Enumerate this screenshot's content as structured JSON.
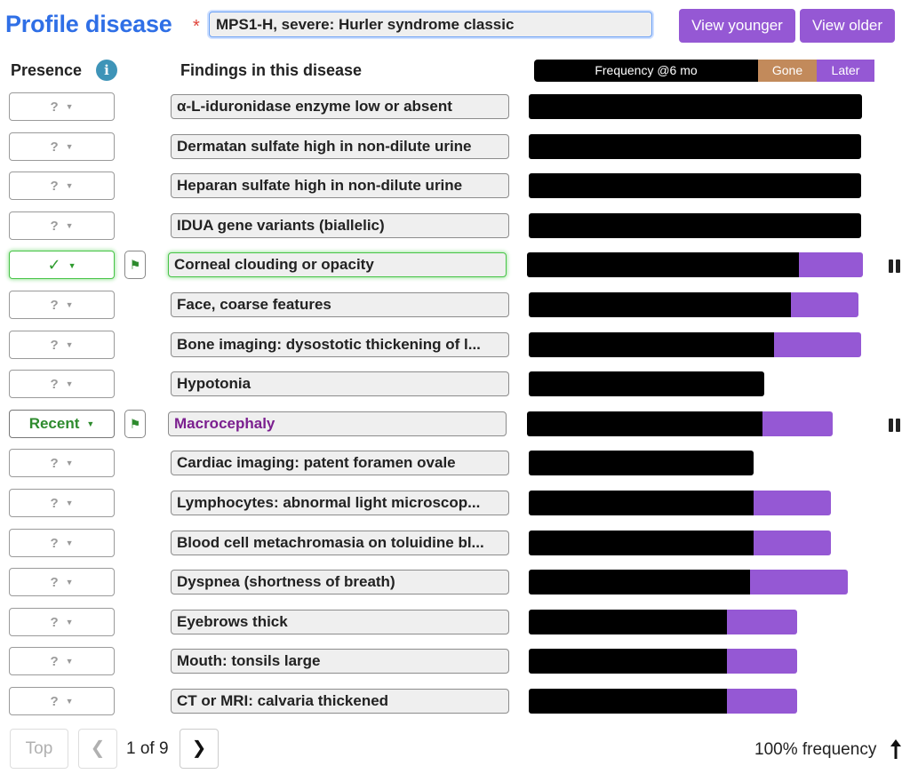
{
  "header": {
    "title": "Profile disease",
    "required_marker": "*",
    "disease_value": "MPS1-H, severe: Hurler syndrome classic",
    "view_younger": "View younger",
    "view_older": "View older"
  },
  "columns": {
    "presence": "Presence",
    "info_glyph": "i",
    "findings": "Findings in this disease"
  },
  "legend": {
    "frequency": "Frequency @6 mo",
    "gone": "Gone",
    "later": "Later",
    "colors": {
      "frequency": "#000000",
      "gone": "#c28a5b",
      "later": "#9558d4"
    }
  },
  "rows": [
    {
      "presence": "?",
      "finding": "α-L-iduronidase enzyme low or absent",
      "freq": 0.992,
      "later": 0
    },
    {
      "presence": "?",
      "finding": "Dermatan sulfate high in non-dilute urine",
      "freq": 0.99,
      "later": 0
    },
    {
      "presence": "?",
      "finding": "Heparan sulfate high in non-dilute urine",
      "freq": 0.99,
      "later": 0
    },
    {
      "presence": "?",
      "finding": "IDUA gene variants (biallelic)",
      "freq": 0.99,
      "later": 0
    },
    {
      "presence": "✓",
      "finding": "Corneal clouding or opacity",
      "freq": 0.81,
      "later": 0.19,
      "flag": "⚑"
    },
    {
      "presence": "?",
      "finding": "Face, coarse features",
      "freq": 0.78,
      "later": 0.2
    },
    {
      "presence": "?",
      "finding": "Bone imaging: dysostotic thickening of l...",
      "freq": 0.73,
      "later": 0.26
    },
    {
      "presence": "?",
      "finding": "Hypotonia",
      "freq": 0.7,
      "later": 0
    },
    {
      "presence": "Recent",
      "finding": "Macrocephaly",
      "freq": 0.7,
      "later": 0.21,
      "flag": "⚑"
    },
    {
      "presence": "?",
      "finding": "Cardiac imaging: patent foramen ovale",
      "freq": 0.67,
      "later": 0
    },
    {
      "presence": "?",
      "finding": "Lymphocytes: abnormal light microscop...",
      "freq": 0.67,
      "later": 0.23
    },
    {
      "presence": "?",
      "finding": "Blood cell metachromasia on toluidine bl...",
      "freq": 0.67,
      "later": 0.23
    },
    {
      "presence": "?",
      "finding": "Dyspnea (shortness of breath)",
      "freq": 0.66,
      "later": 0.29
    },
    {
      "presence": "?",
      "finding": "Eyebrows thick",
      "freq": 0.59,
      "later": 0.21
    },
    {
      "presence": "?",
      "finding": "Mouth: tonsils large",
      "freq": 0.59,
      "later": 0.21
    },
    {
      "presence": "?",
      "finding": "CT or MRI: calvaria thickened",
      "freq": 0.59,
      "later": 0.21
    }
  ],
  "footer": {
    "top": "Top",
    "prev": "❮",
    "page": "1 of 9",
    "next": "❯",
    "frequency_label": "100% frequency"
  }
}
